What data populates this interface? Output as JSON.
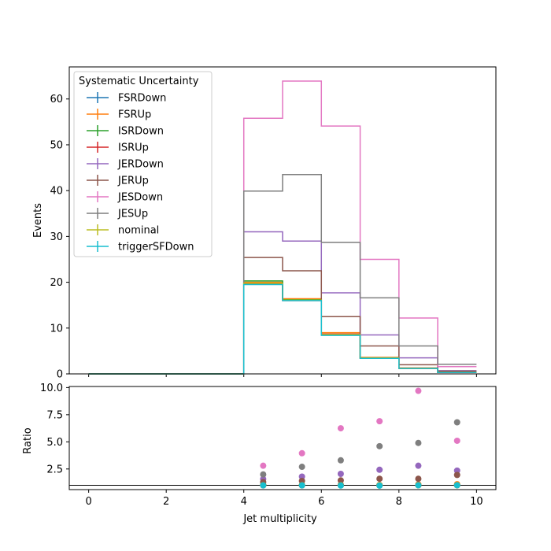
{
  "chart_data": [
    {
      "type": "line",
      "drawstyle": "steps",
      "xlim": [
        -0.5,
        10.5
      ],
      "ylim": [
        0,
        67
      ],
      "xticks": [
        0,
        2,
        4,
        6,
        8,
        10
      ],
      "yticks": [
        0,
        10,
        20,
        30,
        40,
        50,
        60
      ],
      "xlabel": "",
      "ylabel": "Events",
      "grid": false,
      "legend": {
        "title": "Systematic Uncertainty",
        "placement": "upper-left"
      },
      "bin_edges": [
        0,
        1,
        2,
        3,
        4,
        5,
        6,
        7,
        8,
        9,
        10
      ],
      "series": [
        {
          "name": "FSRDown",
          "color": "#1f77b4",
          "values": [
            0,
            0,
            0,
            0,
            20.0,
            16.1,
            8.6,
            3.5,
            1.2,
            0.3
          ]
        },
        {
          "name": "FSRUp",
          "color": "#ff7f0e",
          "values": [
            0,
            0,
            0,
            0,
            20.0,
            16.4,
            9.0,
            3.6,
            1.3,
            0.4
          ]
        },
        {
          "name": "ISRDown",
          "color": "#2ca02c",
          "values": [
            0,
            0,
            0,
            0,
            20.3,
            16.2,
            8.5,
            3.4,
            1.2,
            0.3
          ]
        },
        {
          "name": "ISRUp",
          "color": "#d62728",
          "values": [
            0,
            0,
            0,
            0,
            19.6,
            16.0,
            8.7,
            3.5,
            1.2,
            0.3
          ]
        },
        {
          "name": "JERDown",
          "color": "#9467bd",
          "values": [
            0,
            0,
            0,
            0,
            31.0,
            29.0,
            17.7,
            8.5,
            3.5,
            0.7
          ]
        },
        {
          "name": "JERUp",
          "color": "#8c564b",
          "values": [
            0,
            0,
            0,
            0,
            25.4,
            22.5,
            12.5,
            6.1,
            2.0,
            0.6
          ]
        },
        {
          "name": "JESDown",
          "color": "#e377c2",
          "values": [
            0,
            0,
            0,
            0,
            55.8,
            63.9,
            54.1,
            25.0,
            12.2,
            1.6
          ]
        },
        {
          "name": "JESUp",
          "color": "#7f7f7f",
          "values": [
            0,
            0,
            0,
            0,
            39.9,
            43.5,
            28.7,
            16.6,
            6.1,
            2.1
          ]
        },
        {
          "name": "nominal",
          "color": "#bcbd22",
          "values": [
            0,
            0,
            0,
            0,
            19.8,
            16.1,
            8.6,
            3.5,
            1.2,
            0.3
          ]
        },
        {
          "name": "triggerSFDown",
          "color": "#17becf",
          "values": [
            0,
            0,
            0,
            0,
            19.5,
            16.0,
            8.4,
            3.4,
            1.2,
            0.3
          ]
        }
      ]
    },
    {
      "type": "scatter",
      "xlim": [
        -0.5,
        10.5
      ],
      "ylim": [
        0.6,
        10.1
      ],
      "xticks": [
        0,
        2,
        4,
        6,
        8,
        10
      ],
      "yticks": [
        2.5,
        5.0,
        7.5,
        10.0
      ],
      "ytick_labels": [
        "2.5",
        "5.0",
        "7.5",
        "10.0"
      ],
      "xlabel": "Jet multiplicity",
      "ylabel": "Ratio",
      "reference_line": 1.0,
      "x": [
        4.5,
        5.5,
        6.5,
        7.5,
        8.5,
        9.5
      ],
      "series": [
        {
          "color": "#1f77b4",
          "values": [
            1.01,
            1.0,
            1.0,
            1.0,
            1.0,
            1.0
          ]
        },
        {
          "color": "#ff7f0e",
          "values": [
            1.01,
            1.02,
            1.05,
            1.03,
            1.08,
            1.1
          ]
        },
        {
          "color": "#2ca02c",
          "values": [
            1.03,
            1.01,
            0.99,
            0.98,
            1.0,
            1.0
          ]
        },
        {
          "color": "#d62728",
          "values": [
            0.99,
            0.99,
            1.01,
            1.0,
            1.0,
            1.0
          ]
        },
        {
          "color": "#9467bd",
          "values": [
            1.57,
            1.8,
            2.05,
            2.43,
            2.8,
            2.35
          ]
        },
        {
          "color": "#8c564b",
          "values": [
            1.29,
            1.4,
            1.45,
            1.6,
            1.6,
            1.95
          ]
        },
        {
          "color": "#e377c2",
          "values": [
            2.8,
            3.95,
            6.25,
            6.9,
            9.7,
            5.1
          ]
        },
        {
          "color": "#7f7f7f",
          "values": [
            2.0,
            2.7,
            3.3,
            4.6,
            4.9,
            6.8
          ]
        },
        {
          "color": "#bcbd22",
          "values": [
            1.0,
            1.0,
            1.0,
            1.0,
            1.0,
            1.0
          ]
        },
        {
          "color": "#17becf",
          "values": [
            0.99,
            0.99,
            0.98,
            0.97,
            1.0,
            1.0
          ]
        }
      ]
    }
  ]
}
